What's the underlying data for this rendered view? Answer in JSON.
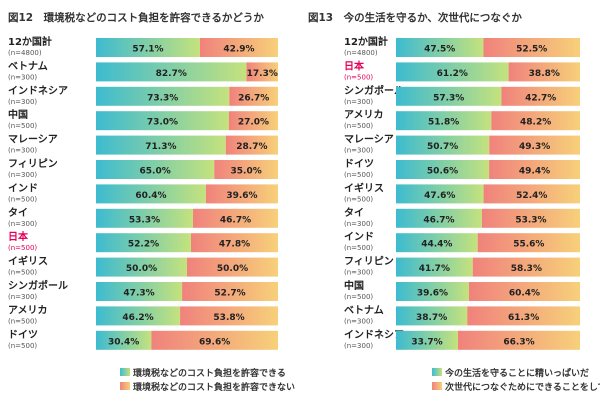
{
  "chart_data": [
    {
      "type": "bar",
      "stacked": true,
      "orientation": "horizontal",
      "title": "図12　環境税などのコスト負担を許容できるかどうか",
      "categories": [
        {
          "name": "12か国計",
          "n": "(n=4800)",
          "highlight": false
        },
        {
          "name": "ベトナム",
          "n": "(n=300)",
          "highlight": false
        },
        {
          "name": "インドネシア",
          "n": "(n=300)",
          "highlight": false
        },
        {
          "name": "中国",
          "n": "(n=500)",
          "highlight": false
        },
        {
          "name": "マレーシア",
          "n": "(n=300)",
          "highlight": false
        },
        {
          "name": "フィリピン",
          "n": "(n=300)",
          "highlight": false
        },
        {
          "name": "インド",
          "n": "(n=500)",
          "highlight": false
        },
        {
          "name": "タイ",
          "n": "(n=300)",
          "highlight": false
        },
        {
          "name": "日本",
          "n": "(n=500)",
          "highlight": true
        },
        {
          "name": "イギリス",
          "n": "(n=500)",
          "highlight": false
        },
        {
          "name": "シンガポール",
          "n": "(n=300)",
          "highlight": false
        },
        {
          "name": "アメリカ",
          "n": "(n=500)",
          "highlight": false
        },
        {
          "name": "ドイツ",
          "n": "(n=500)",
          "highlight": false
        }
      ],
      "series": [
        {
          "name": "環境税などのコスト負担を許容できる",
          "values": [
            57.1,
            82.7,
            73.3,
            73.0,
            71.3,
            65.0,
            60.4,
            53.3,
            52.2,
            50.0,
            47.3,
            46.2,
            30.4
          ]
        },
        {
          "name": "環境税などのコスト負担を許容できない",
          "values": [
            42.9,
            17.3,
            26.7,
            27.0,
            28.7,
            35.0,
            39.6,
            46.7,
            47.8,
            50.0,
            52.7,
            53.8,
            69.6
          ]
        }
      ],
      "unit": "%",
      "legend": "bottom-right"
    },
    {
      "type": "bar",
      "stacked": true,
      "orientation": "horizontal",
      "title": "図13　今の生活を守るか、次世代につなぐか",
      "categories": [
        {
          "name": "12か国計",
          "n": "(n=4800)",
          "highlight": false
        },
        {
          "name": "日本",
          "n": "(n=500)",
          "highlight": true
        },
        {
          "name": "シンガポール",
          "n": "(n=300)",
          "highlight": false
        },
        {
          "name": "アメリカ",
          "n": "(n=500)",
          "highlight": false
        },
        {
          "name": "マレーシア",
          "n": "(n=300)",
          "highlight": false
        },
        {
          "name": "ドイツ",
          "n": "(n=500)",
          "highlight": false
        },
        {
          "name": "イギリス",
          "n": "(n=500)",
          "highlight": false
        },
        {
          "name": "タイ",
          "n": "(n=300)",
          "highlight": false
        },
        {
          "name": "インド",
          "n": "(n=500)",
          "highlight": false
        },
        {
          "name": "フィリピン",
          "n": "(n=300)",
          "highlight": false
        },
        {
          "name": "中国",
          "n": "(n=500)",
          "highlight": false
        },
        {
          "name": "ベトナム",
          "n": "(n=300)",
          "highlight": false
        },
        {
          "name": "インドネシア",
          "n": "(n=300)",
          "highlight": false
        }
      ],
      "series": [
        {
          "name": "今の生活を守ることに精いっぱいだ",
          "values": [
            47.5,
            61.2,
            57.3,
            51.8,
            50.7,
            50.6,
            47.6,
            46.7,
            44.4,
            41.7,
            39.6,
            38.7,
            33.7
          ]
        },
        {
          "name": "次世代につなぐためにできることをしている",
          "values": [
            52.5,
            38.8,
            42.7,
            48.2,
            49.3,
            49.4,
            52.4,
            53.3,
            55.6,
            58.3,
            60.4,
            61.3,
            66.3
          ]
        }
      ],
      "unit": "%",
      "legend": "bottom-right"
    }
  ],
  "colors": {
    "series_a_start": "#3dbbd0",
    "series_a_end": "#c5e27d",
    "series_b_start": "#f0827c",
    "series_b_end": "#f7d07a",
    "highlight_label": "#e6005a"
  }
}
